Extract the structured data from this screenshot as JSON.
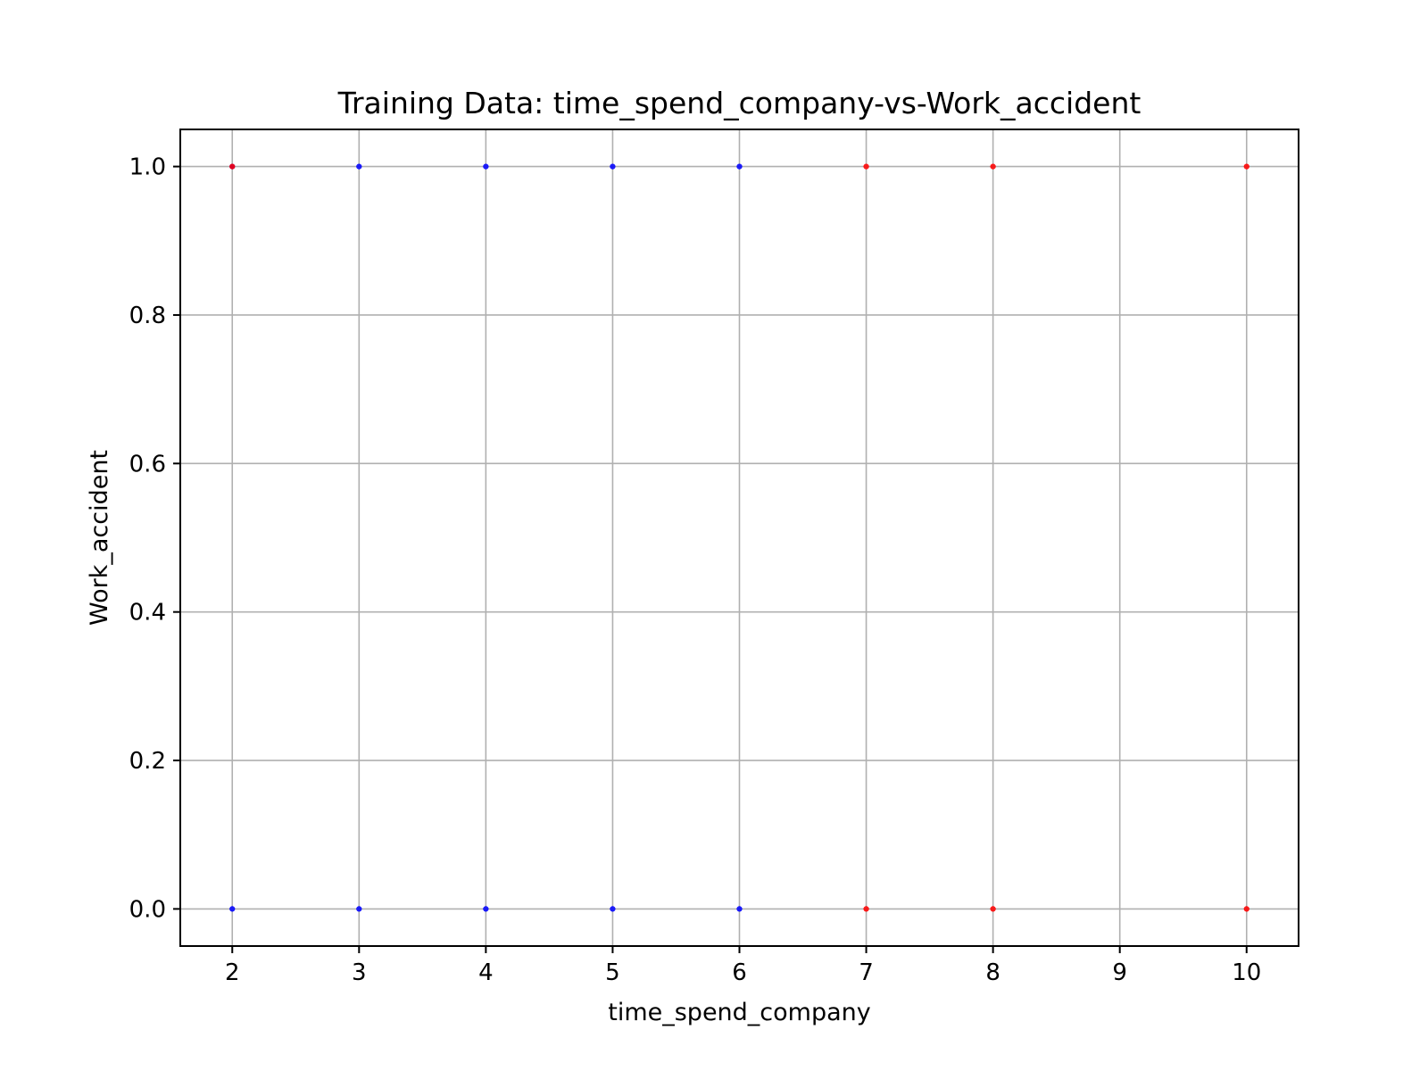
{
  "chart_data": {
    "type": "scatter",
    "title": "Training Data: time_spend_company-vs-Work_accident",
    "xlabel": "time_spend_company",
    "ylabel": "Work_accident",
    "xlim": [
      1.59,
      10.41
    ],
    "ylim": [
      -0.05,
      1.05
    ],
    "x_ticks": [
      2,
      3,
      4,
      5,
      6,
      7,
      8,
      9,
      10
    ],
    "x_tick_labels": [
      "2",
      "3",
      "4",
      "5",
      "6",
      "7",
      "8",
      "9",
      "10"
    ],
    "y_ticks": [
      0.0,
      0.2,
      0.4,
      0.6,
      0.8,
      1.0
    ],
    "y_tick_labels": [
      "0.0",
      "0.2",
      "0.4",
      "0.6",
      "0.8",
      "1.0"
    ],
    "grid": true,
    "series": [
      {
        "color": "#0000ff",
        "points": [
          {
            "x": 2,
            "y": 1.0
          },
          {
            "x": 3,
            "y": 1.0
          },
          {
            "x": 4,
            "y": 1.0
          },
          {
            "x": 5,
            "y": 1.0
          },
          {
            "x": 6,
            "y": 1.0
          },
          {
            "x": 2,
            "y": 0.0
          },
          {
            "x": 3,
            "y": 0.0
          },
          {
            "x": 4,
            "y": 0.0
          },
          {
            "x": 5,
            "y": 0.0
          },
          {
            "x": 6,
            "y": 0.0
          }
        ]
      },
      {
        "color": "#ff0000",
        "points": [
          {
            "x": 2,
            "y": 1.0
          },
          {
            "x": 7,
            "y": 1.0
          },
          {
            "x": 8,
            "y": 1.0
          },
          {
            "x": 10,
            "y": 1.0
          },
          {
            "x": 7,
            "y": 0.0
          },
          {
            "x": 8,
            "y": 0.0
          },
          {
            "x": 10,
            "y": 0.0
          }
        ]
      }
    ]
  }
}
